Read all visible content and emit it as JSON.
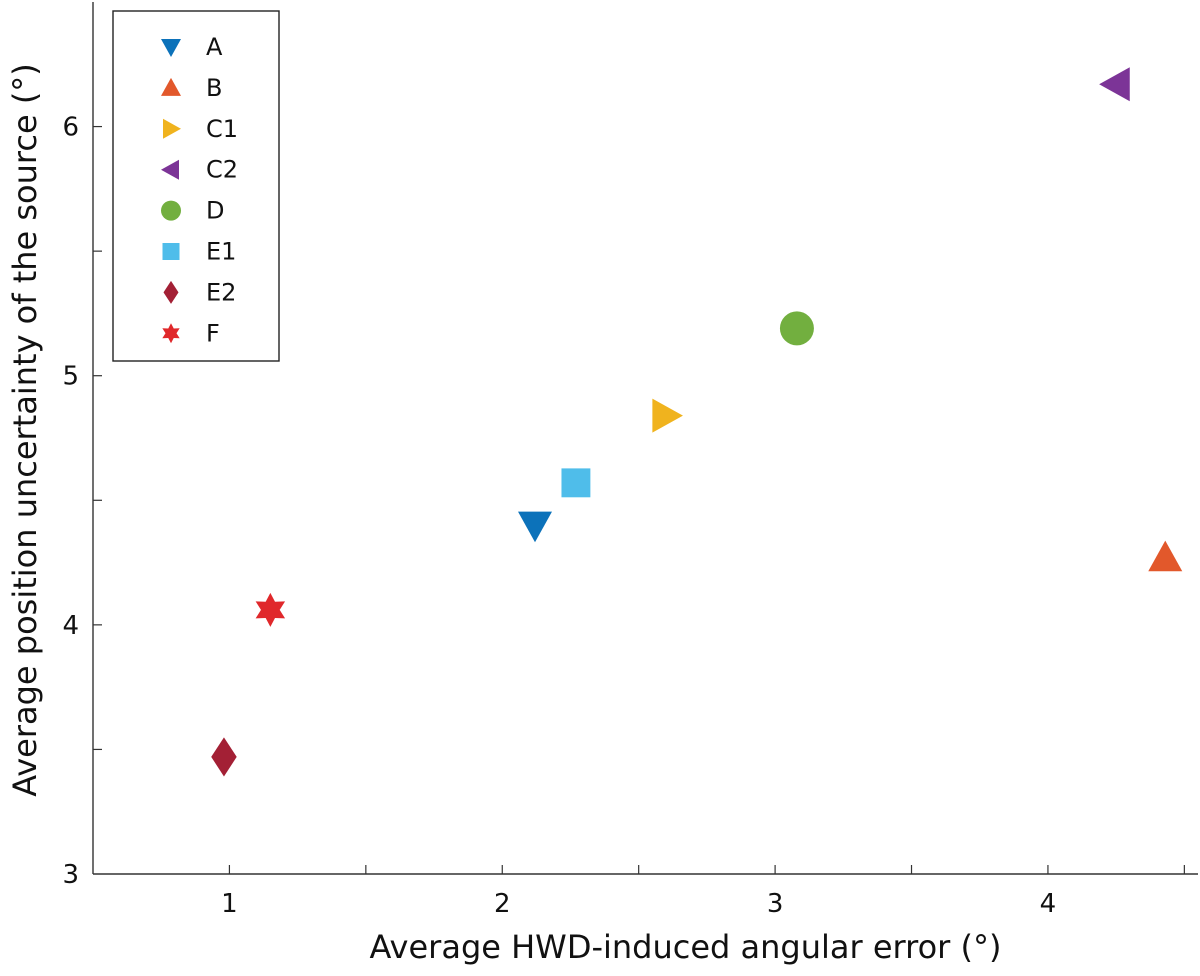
{
  "chart_data": {
    "type": "scatter",
    "title": "",
    "xlabel": "Average HWD-induced angular error (°)",
    "ylabel": "Average position uncertainty of the source (°)",
    "xlim": [
      0.5,
      4.55
    ],
    "ylim": [
      3.0,
      6.5
    ],
    "x_ticks": [
      0.5,
      1.0,
      1.5,
      2.0,
      2.5,
      3.0,
      3.5,
      4.0,
      4.5
    ],
    "x_tick_labels": [
      "",
      "1",
      "",
      "2",
      "",
      "3",
      "",
      "4",
      ""
    ],
    "y_ticks": [
      3.0,
      3.5,
      4.0,
      4.5,
      5.0,
      5.5,
      6.0,
      6.5
    ],
    "y_tick_labels": [
      "3",
      "",
      "4",
      "",
      "5",
      "",
      "6",
      ""
    ],
    "grid": false,
    "legend_position": "top-left",
    "series": [
      {
        "name": "A",
        "marker": "triangle-down",
        "color": "#0C72BA",
        "x": 2.12,
        "y": 4.4
      },
      {
        "name": "B",
        "marker": "triangle-up",
        "color": "#E2582B",
        "x": 4.43,
        "y": 4.27
      },
      {
        "name": "C1",
        "marker": "triangle-right",
        "color": "#F0B31E",
        "x": 2.6,
        "y": 4.84
      },
      {
        "name": "C2",
        "marker": "triangle-left",
        "color": "#7C3497",
        "x": 4.25,
        "y": 6.17
      },
      {
        "name": "D",
        "marker": "circle",
        "color": "#72AF3F",
        "x": 3.08,
        "y": 5.19
      },
      {
        "name": "E1",
        "marker": "square",
        "color": "#4FBDEA",
        "x": 2.27,
        "y": 4.57
      },
      {
        "name": "E2",
        "marker": "diamond",
        "color": "#A32035",
        "x": 0.98,
        "y": 3.47
      },
      {
        "name": "F",
        "marker": "hexagram",
        "color": "#E0282B",
        "x": 1.15,
        "y": 4.06
      }
    ]
  }
}
